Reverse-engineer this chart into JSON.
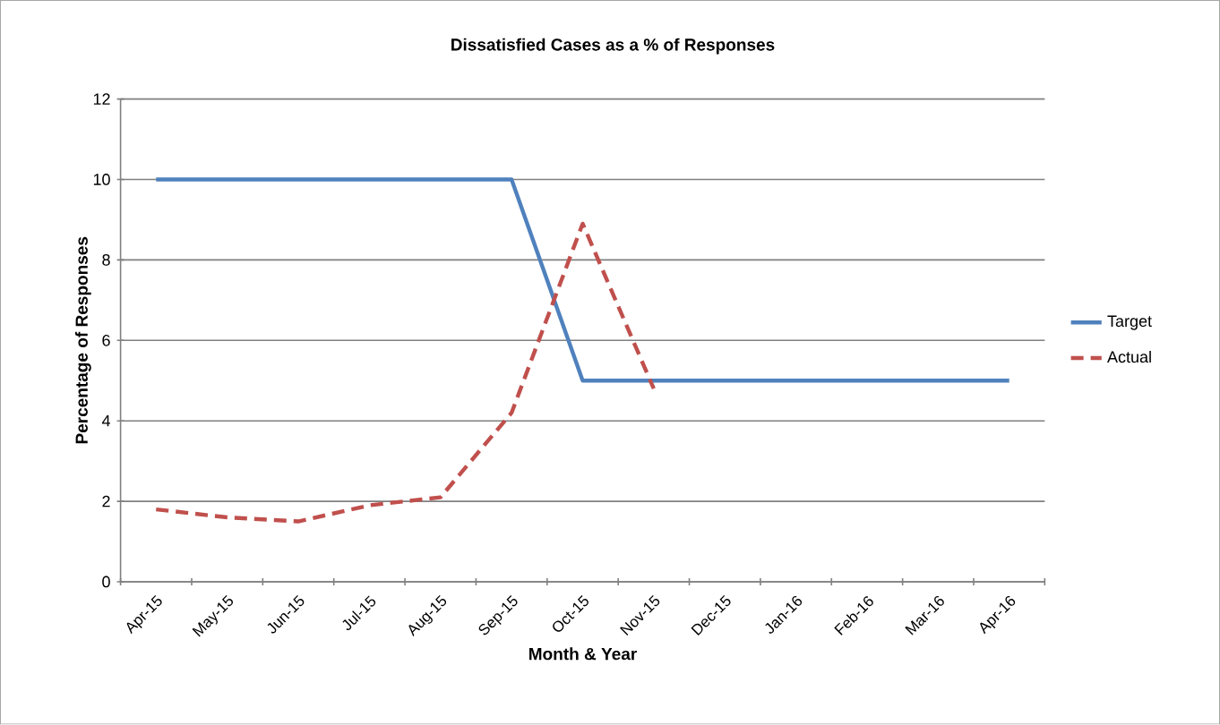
{
  "chart_data": {
    "type": "line",
    "title": "Dissatisfied Cases as a % of Responses",
    "xlabel": "Month & Year",
    "ylabel": "Percentage of Responses",
    "categories": [
      "Apr-15",
      "May-15",
      "Jun-15",
      "Jul-15",
      "Aug-15",
      "Sep-15",
      "Oct-15",
      "Nov-15",
      "Dec-15",
      "Jan-16",
      "Feb-16",
      "Mar-16",
      "Apr-16"
    ],
    "series": [
      {
        "name": "Target",
        "color": "#4f81bd",
        "line_style": "solid",
        "values": [
          10,
          10,
          10,
          10,
          10,
          10,
          5,
          5,
          5,
          5,
          5,
          5,
          5
        ]
      },
      {
        "name": "Actual",
        "color": "#c0504d",
        "line_style": "dashed",
        "values": [
          1.8,
          1.6,
          1.5,
          1.9,
          2.1,
          4.2,
          8.9,
          4.8,
          null,
          null,
          null,
          null,
          null
        ]
      }
    ],
    "ylim": [
      0,
      12
    ],
    "yticks": [
      0,
      2,
      4,
      6,
      8,
      10,
      12
    ],
    "grid": "y",
    "legend": "right",
    "marker": "none"
  }
}
